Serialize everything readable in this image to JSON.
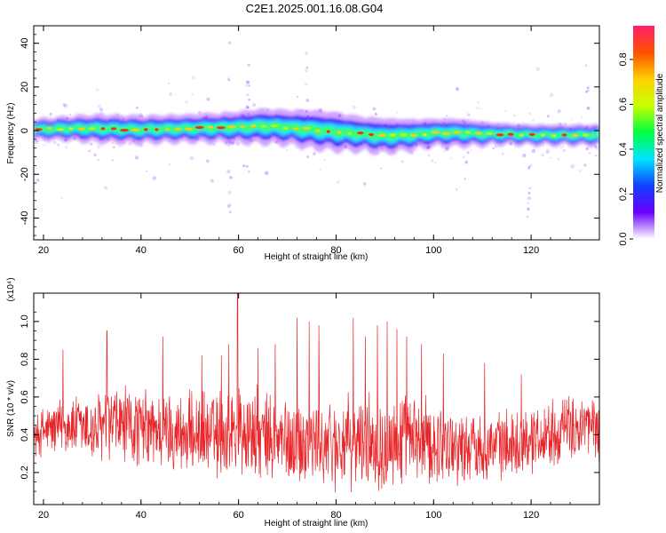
{
  "title": "C2E1.2025.001.16.08.G04",
  "colors": {
    "snr_line": "#e8262a",
    "ridge_low": "#7a00ff",
    "ridge_mid": "#1ee6ff",
    "ridge_high": "#ff1f00",
    "axis": "#000000"
  },
  "chart_data": [
    {
      "type": "heatmap",
      "xlabel": "Height of straight line (km)",
      "ylabel": "Frequency (Hz)",
      "xlim": [
        18,
        134
      ],
      "ylim": [
        -50,
        48
      ],
      "x_ticks": [
        20,
        40,
        60,
        80,
        100,
        120
      ],
      "y_ticks": [
        -40,
        -20,
        0,
        20,
        40
      ],
      "grid": false,
      "ridge": {
        "height_km": [
          18,
          25,
          30,
          40,
          50,
          60,
          65,
          70,
          75,
          80,
          85,
          90,
          95,
          100,
          105,
          110,
          115,
          120,
          125,
          130,
          134
        ],
        "center_hz": [
          0.5,
          1,
          1,
          0.5,
          1,
          1.5,
          2,
          1.5,
          0.5,
          -0.5,
          -1.5,
          -2.5,
          -2,
          -1,
          -1,
          -1.5,
          -1.5,
          -2,
          -2,
          -2,
          -2
        ],
        "halfwidth_hz": [
          3,
          3.5,
          4,
          4,
          4,
          4.5,
          5,
          5,
          5.5,
          5.5,
          5,
          5,
          4.5,
          4,
          4,
          3.5,
          3,
          3,
          3,
          3,
          3
        ]
      },
      "colorbar": {
        "label": "Normalized spectral amplitude",
        "range": [
          0.0,
          0.95
        ],
        "ticks": [
          0.0,
          0.2,
          0.4,
          0.6,
          0.8
        ],
        "tick_labels": [
          "0.0",
          "0.2",
          "0.4",
          "0.6",
          "0.8"
        ],
        "colors": [
          "#ffffff",
          "#6a00ff",
          "#1040ff",
          "#00e5ff",
          "#00ff40",
          "#c8ff00",
          "#ffd000",
          "#ff5000",
          "#ff1f6a"
        ]
      }
    },
    {
      "type": "line",
      "xlabel": "Height of straight line (km)",
      "ylabel": "SNR (10 * v/v)",
      "scale_label": "(x10⁴)",
      "xlim": [
        18,
        134
      ],
      "ylim": [
        0.03,
        1.15
      ],
      "x_ticks": [
        20,
        40,
        60,
        80,
        100,
        120
      ],
      "y_ticks": [
        0.2,
        0.4,
        0.6,
        0.8,
        1.0
      ],
      "grid": false,
      "series": [
        {
          "anchors_x": [
            18,
            20,
            25,
            30,
            35,
            40,
            45,
            50,
            55,
            60,
            65,
            70,
            75,
            80,
            85,
            90,
            95,
            100,
            105,
            110,
            115,
            120,
            125,
            130,
            134
          ],
          "baseline": [
            0.38,
            0.42,
            0.45,
            0.42,
            0.45,
            0.43,
            0.42,
            0.4,
            0.4,
            0.42,
            0.38,
            0.36,
            0.36,
            0.35,
            0.36,
            0.37,
            0.36,
            0.36,
            0.34,
            0.34,
            0.35,
            0.38,
            0.42,
            0.44,
            0.44
          ],
          "spread": [
            0.12,
            0.16,
            0.18,
            0.22,
            0.25,
            0.24,
            0.24,
            0.25,
            0.27,
            0.3,
            0.28,
            0.27,
            0.28,
            0.28,
            0.27,
            0.3,
            0.28,
            0.26,
            0.22,
            0.2,
            0.2,
            0.2,
            0.2,
            0.2,
            0.2
          ],
          "peaks": [
            {
              "x": 33.0,
              "y": 0.95
            },
            {
              "x": 44.5,
              "y": 0.92
            },
            {
              "x": 52.5,
              "y": 0.82
            },
            {
              "x": 56.5,
              "y": 0.82
            },
            {
              "x": 58.0,
              "y": 0.88
            },
            {
              "x": 59.8,
              "y": 1.15
            },
            {
              "x": 64.0,
              "y": 0.86
            },
            {
              "x": 67.5,
              "y": 0.88
            },
            {
              "x": 72.0,
              "y": 1.02
            },
            {
              "x": 74.5,
              "y": 1.0
            },
            {
              "x": 76.5,
              "y": 0.98
            },
            {
              "x": 83.5,
              "y": 1.02
            },
            {
              "x": 86.0,
              "y": 0.92
            },
            {
              "x": 88.5,
              "y": 0.98
            },
            {
              "x": 90.5,
              "y": 1.0
            },
            {
              "x": 92.5,
              "y": 0.96
            },
            {
              "x": 94.5,
              "y": 0.92
            },
            {
              "x": 97.5,
              "y": 0.88
            },
            {
              "x": 102.0,
              "y": 0.83
            },
            {
              "x": 110.5,
              "y": 0.78
            },
            {
              "x": 118.0,
              "y": 0.72
            },
            {
              "x": 24.0,
              "y": 0.85
            }
          ]
        }
      ]
    }
  ]
}
